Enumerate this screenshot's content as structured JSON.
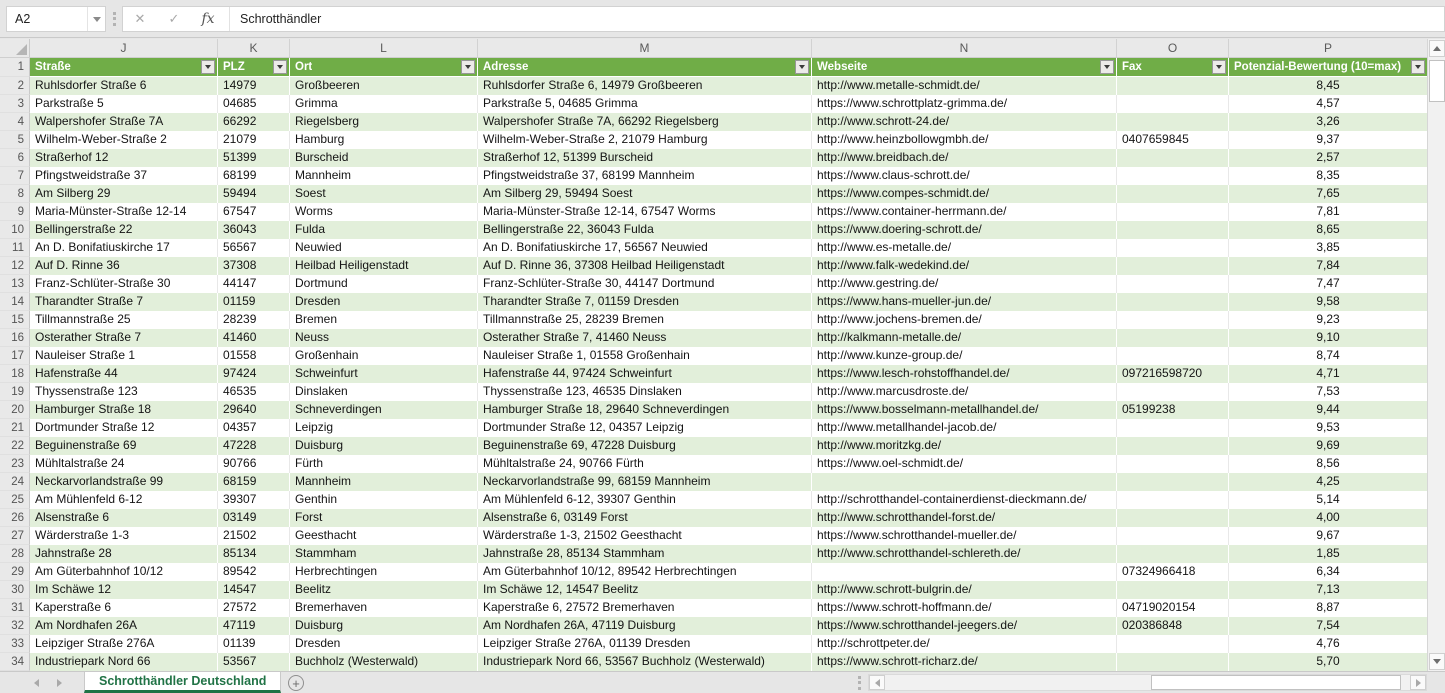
{
  "name_box": {
    "value": "A2"
  },
  "formula_bar": {
    "value": "Schrotthändler"
  },
  "icons": {
    "cancel": "✕",
    "enter": "✓",
    "fx": "fx",
    "add_sheet": "+"
  },
  "columns": [
    {
      "letter": "J",
      "header": "Straße"
    },
    {
      "letter": "K",
      "header": "PLZ"
    },
    {
      "letter": "L",
      "header": "Ort"
    },
    {
      "letter": "M",
      "header": "Adresse"
    },
    {
      "letter": "N",
      "header": "Webseite"
    },
    {
      "letter": "O",
      "header": "Fax"
    },
    {
      "letter": "P",
      "header": "Potenzial-Bewertung (10=max)"
    }
  ],
  "rows": [
    {
      "num": 2,
      "cells": [
        "Ruhlsdorfer Straße 6",
        "14979",
        "Großbeeren",
        "Ruhlsdorfer Straße 6, 14979 Großbeeren",
        "http://www.metalle-schmidt.de/",
        "",
        "8,45"
      ]
    },
    {
      "num": 3,
      "cells": [
        "Parkstraße 5",
        "04685",
        "Grimma",
        "Parkstraße 5, 04685 Grimma",
        "https://www.schrottplatz-grimma.de/",
        "",
        "4,57"
      ]
    },
    {
      "num": 4,
      "cells": [
        "Walpershofer Straße 7A",
        "66292",
        "Riegelsberg",
        "Walpershofer Straße 7A, 66292 Riegelsberg",
        "http://www.schrott-24.de/",
        "",
        "3,26"
      ]
    },
    {
      "num": 5,
      "cells": [
        "Wilhelm-Weber-Straße 2",
        "21079",
        "Hamburg",
        "Wilhelm-Weber-Straße 2, 21079 Hamburg",
        "http://www.heinzbollowgmbh.de/",
        "0407659845",
        "9,37"
      ]
    },
    {
      "num": 6,
      "cells": [
        "Straßerhof 12",
        "51399",
        "Burscheid",
        "Straßerhof 12, 51399 Burscheid",
        "http://www.breidbach.de/",
        "",
        "2,57"
      ]
    },
    {
      "num": 7,
      "cells": [
        "Pfingstweidstraße 37",
        "68199",
        "Mannheim",
        "Pfingstweidstraße 37, 68199 Mannheim",
        "https://www.claus-schrott.de/",
        "",
        "8,35"
      ]
    },
    {
      "num": 8,
      "cells": [
        "Am Silberg 29",
        "59494",
        "Soest",
        "Am Silberg 29, 59494 Soest",
        "https://www.compes-schmidt.de/",
        "",
        "7,65"
      ]
    },
    {
      "num": 9,
      "cells": [
        "Maria-Münster-Straße 12-14",
        "67547",
        "Worms",
        "Maria-Münster-Straße 12-14, 67547 Worms",
        "https://www.container-herrmann.de/",
        "",
        "7,81"
      ]
    },
    {
      "num": 10,
      "cells": [
        "Bellingerstraße 22",
        "36043",
        "Fulda",
        "Bellingerstraße 22, 36043 Fulda",
        "https://www.doering-schrott.de/",
        "",
        "8,65"
      ]
    },
    {
      "num": 11,
      "cells": [
        "An D. Bonifatiuskirche 17",
        "56567",
        "Neuwied",
        "An D. Bonifatiuskirche 17, 56567 Neuwied",
        "http://www.es-metalle.de/",
        "",
        "3,85"
      ]
    },
    {
      "num": 12,
      "cells": [
        "Auf D. Rinne 36",
        "37308",
        "Heilbad Heiligenstadt",
        "Auf D. Rinne 36, 37308 Heilbad Heiligenstadt",
        "http://www.falk-wedekind.de/",
        "",
        "7,84"
      ]
    },
    {
      "num": 13,
      "cells": [
        "Franz-Schlüter-Straße 30",
        "44147",
        "Dortmund",
        "Franz-Schlüter-Straße 30, 44147 Dortmund",
        "http://www.gestring.de/",
        "",
        "7,47"
      ]
    },
    {
      "num": 14,
      "cells": [
        "Tharandter Straße 7",
        "01159",
        "Dresden",
        "Tharandter Straße 7, 01159 Dresden",
        "https://www.hans-mueller-jun.de/",
        "",
        "9,58"
      ]
    },
    {
      "num": 15,
      "cells": [
        "Tillmannstraße 25",
        "28239",
        "Bremen",
        "Tillmannstraße 25, 28239 Bremen",
        "http://www.jochens-bremen.de/",
        "",
        "9,23"
      ]
    },
    {
      "num": 16,
      "cells": [
        "Osterather Straße 7",
        "41460",
        "Neuss",
        "Osterather Straße 7, 41460 Neuss",
        "http://kalkmann-metalle.de/",
        "",
        "9,10"
      ]
    },
    {
      "num": 17,
      "cells": [
        "Nauleiser Straße 1",
        "01558",
        "Großenhain",
        "Nauleiser Straße 1, 01558 Großenhain",
        "http://www.kunze-group.de/",
        "",
        "8,74"
      ]
    },
    {
      "num": 18,
      "cells": [
        "Hafenstraße 44",
        "97424",
        "Schweinfurt",
        "Hafenstraße 44, 97424 Schweinfurt",
        "https://www.lesch-rohstoffhandel.de/",
        "097216598720",
        "4,71"
      ]
    },
    {
      "num": 19,
      "cells": [
        "Thyssenstraße 123",
        "46535",
        "Dinslaken",
        "Thyssenstraße 123, 46535 Dinslaken",
        "http://www.marcusdroste.de/",
        "",
        "7,53"
      ]
    },
    {
      "num": 20,
      "cells": [
        "Hamburger Straße 18",
        "29640",
        "Schneverdingen",
        "Hamburger Straße 18, 29640 Schneverdingen",
        "https://www.bosselmann-metallhandel.de/",
        "05199238",
        "9,44"
      ]
    },
    {
      "num": 21,
      "cells": [
        "Dortmunder Straße 12",
        "04357",
        "Leipzig",
        "Dortmunder Straße 12, 04357 Leipzig",
        "http://www.metallhandel-jacob.de/",
        "",
        "9,53"
      ]
    },
    {
      "num": 22,
      "cells": [
        "Beguinenstraße 69",
        "47228",
        "Duisburg",
        "Beguinenstraße 69, 47228 Duisburg",
        "http://www.moritzkg.de/",
        "",
        "9,69"
      ]
    },
    {
      "num": 23,
      "cells": [
        "Mühltalstraße 24",
        "90766",
        "Fürth",
        "Mühltalstraße 24, 90766 Fürth",
        "https://www.oel-schmidt.de/",
        "",
        "8,56"
      ]
    },
    {
      "num": 24,
      "cells": [
        "Neckarvorlandstraße 99",
        "68159",
        "Mannheim",
        "Neckarvorlandstraße 99, 68159 Mannheim",
        "",
        "",
        "4,25"
      ]
    },
    {
      "num": 25,
      "cells": [
        "Am Mühlenfeld 6-12",
        "39307",
        "Genthin",
        "Am Mühlenfeld 6-12, 39307 Genthin",
        "http://schrotthandel-containerdienst-dieckmann.de/",
        "",
        "5,14"
      ]
    },
    {
      "num": 26,
      "cells": [
        "Alsenstraße 6",
        "03149",
        "Forst",
        "Alsenstraße 6, 03149 Forst",
        "http://www.schrotthandel-forst.de/",
        "",
        "4,00"
      ]
    },
    {
      "num": 27,
      "cells": [
        "Wärderstraße 1-3",
        "21502",
        "Geesthacht",
        "Wärderstraße 1-3, 21502 Geesthacht",
        "https://www.schrotthandel-mueller.de/",
        "",
        "9,67"
      ]
    },
    {
      "num": 28,
      "cells": [
        "Jahnstraße 28",
        "85134",
        "Stammham",
        "Jahnstraße 28, 85134 Stammham",
        "http://www.schrotthandel-schlereth.de/",
        "",
        "1,85"
      ]
    },
    {
      "num": 29,
      "cells": [
        "Am Güterbahnhof 10/12",
        "89542",
        "Herbrechtingen",
        "Am Güterbahnhof 10/12, 89542 Herbrechtingen",
        "",
        "07324966418",
        "6,34"
      ]
    },
    {
      "num": 30,
      "cells": [
        "Im Schäwe 12",
        "14547",
        "Beelitz",
        "Im Schäwe 12, 14547 Beelitz",
        "http://www.schrott-bulgrin.de/",
        "",
        "7,13"
      ]
    },
    {
      "num": 31,
      "cells": [
        "Kaperstraße 6",
        "27572",
        "Bremerhaven",
        "Kaperstraße 6, 27572 Bremerhaven",
        "https://www.schrott-hoffmann.de/",
        "04719020154",
        "8,87"
      ]
    },
    {
      "num": 32,
      "cells": [
        "Am Nordhafen 26A",
        "47119",
        "Duisburg",
        "Am Nordhafen 26A, 47119 Duisburg",
        "https://www.schrotthandel-jeegers.de/",
        "020386848",
        "7,54"
      ]
    },
    {
      "num": 33,
      "cells": [
        "Leipziger Straße 276A",
        "01139",
        "Dresden",
        "Leipziger Straße 276A, 01139 Dresden",
        "http://schrottpeter.de/",
        "",
        "4,76"
      ]
    },
    {
      "num": 34,
      "cells": [
        "Industriepark Nord 66",
        "53567",
        "Buchholz (Westerwald)",
        "Industriepark Nord 66, 53567 Buchholz (Westerwald)",
        "https://www.schrott-richarz.de/",
        "",
        "5,70"
      ]
    }
  ],
  "sheet_tab": {
    "name": "Schrotthändler Deutschland"
  },
  "colors": {
    "header_green": "#70AD47",
    "band_green": "#E2EFDA",
    "tab_green": "#217346",
    "chrome_gray": "#E6E6E6"
  }
}
